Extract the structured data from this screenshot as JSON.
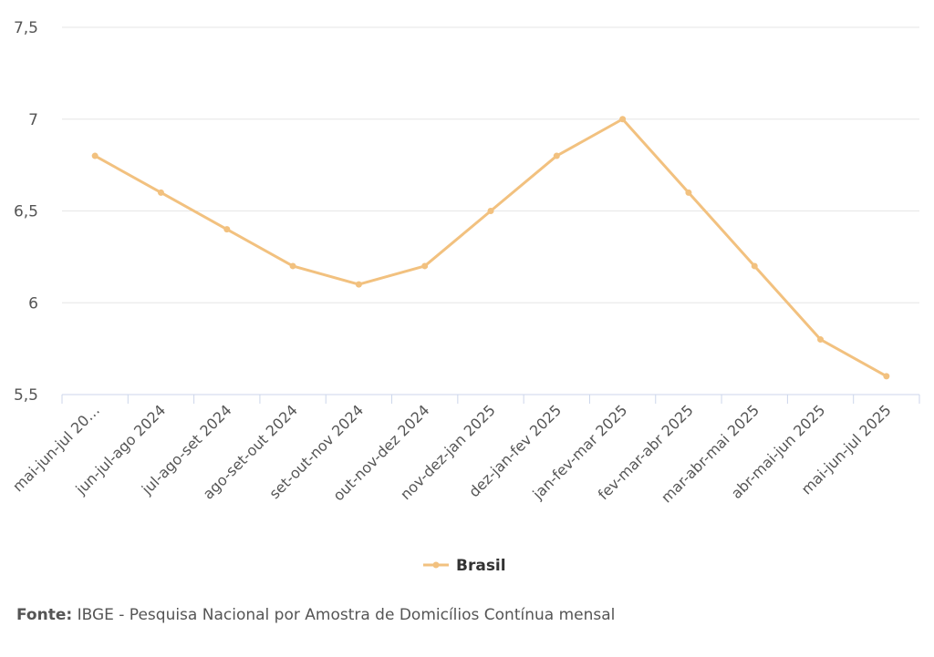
{
  "chart_data": {
    "type": "line",
    "categories": [
      "mai-jun-jul 20…",
      "jun-jul-ago 2024",
      "jul-ago-set 2024",
      "ago-set-out 2024",
      "set-out-nov 2024",
      "out-nov-dez 2024",
      "nov-dez-jan 2025",
      "dez-jan-fev 2025",
      "jan-fev-mar 2025",
      "fev-mar-abr 2025",
      "mar-abr-mai 2025",
      "abr-mai-jun 2025",
      "mai-jun-jul 2025"
    ],
    "series": [
      {
        "name": "Brasil",
        "values": [
          6.8,
          6.6,
          6.4,
          6.2,
          6.1,
          6.2,
          6.5,
          6.8,
          7.0,
          6.6,
          6.2,
          5.8,
          5.6
        ]
      }
    ],
    "ylim": [
      5.5,
      7.5
    ],
    "yticks": [
      "5,5",
      "6",
      "6,5",
      "7",
      "7,5"
    ],
    "ytick_values": [
      5.5,
      6,
      6.5,
      7,
      7.5
    ],
    "grid": true,
    "legend_position": "bottom-center",
    "colors": {
      "series": "#F2C17F",
      "grid": "#e6e6e6",
      "axis": "#ccd6eb"
    }
  },
  "source": {
    "label": "Fonte:",
    "text": "IBGE - Pesquisa Nacional por Amostra de Domicílios Contínua mensal"
  }
}
